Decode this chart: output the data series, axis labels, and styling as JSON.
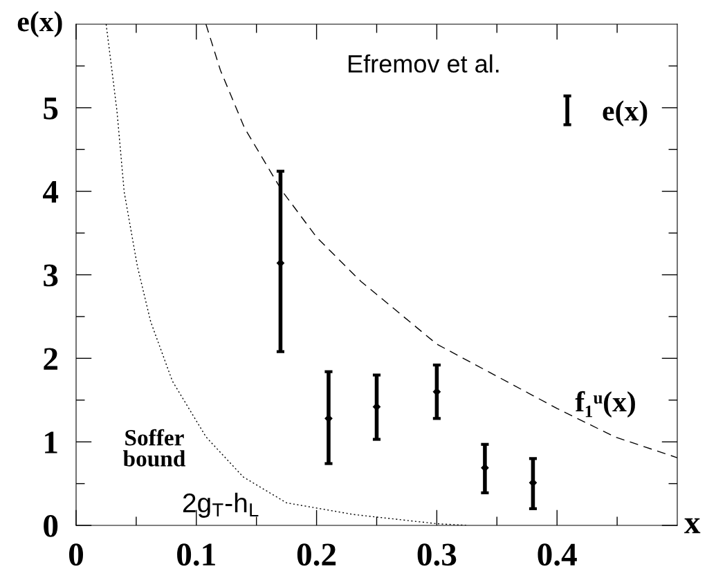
{
  "chart_data": {
    "type": "scatter",
    "xlabel": "x",
    "ylabel": "e(x)",
    "xlim": [
      0,
      0.5
    ],
    "ylim": [
      0,
      6
    ],
    "xticks": [
      0,
      {
        "value": 0.05,
        "label": null
      },
      0.1,
      {
        "value": 0.15,
        "label": null
      },
      0.2,
      {
        "value": 0.25,
        "label": null
      },
      0.3,
      {
        "value": 0.35,
        "label": null
      },
      0.4,
      {
        "value": 0.45,
        "label": null
      }
    ],
    "yticks": [
      0,
      {
        "value": 0.5,
        "label": null
      },
      1,
      {
        "value": 1.5,
        "label": null
      },
      2,
      {
        "value": 2.5,
        "label": null
      },
      3,
      {
        "value": 3.5,
        "label": null
      },
      4,
      {
        "value": 4.5,
        "label": null
      },
      5,
      {
        "value": 5.5,
        "label": null
      }
    ],
    "grid": false,
    "legend": "top right",
    "series": [
      {
        "name": "e(x)",
        "marker": "diamond",
        "color": "#000000",
        "x": [
          0.17,
          0.21,
          0.25,
          0.3,
          0.34,
          0.38
        ],
        "values": [
          3.14,
          1.28,
          1.42,
          1.6,
          0.69,
          0.51
        ],
        "errors": [
          [
            2.08,
            4.24
          ],
          [
            0.74,
            1.84
          ],
          [
            1.03,
            1.8
          ],
          [
            1.28,
            1.92
          ],
          [
            0.39,
            0.97
          ],
          [
            0.2,
            0.8
          ]
        ]
      },
      {
        "type": "line",
        "color": "#000000",
        "line_style": "dashed",
        "x": [
          0.108,
          0.12,
          0.14,
          0.171,
          0.2,
          0.232,
          0.237,
          0.3,
          0.4,
          0.448,
          0.5
        ],
        "values": [
          6.0,
          5.45,
          4.76,
          4.01,
          3.45,
          2.99,
          2.92,
          2.17,
          1.4,
          1.06,
          0.81
        ]
      },
      {
        "type": "line",
        "color": "#000000",
        "line_style": "dotted",
        "x": [
          0.025,
          0.034,
          0.04,
          0.051,
          0.062,
          0.08,
          0.108,
          0.139,
          0.175,
          0.231,
          0.3,
          0.326
        ],
        "values": [
          6.0,
          4.96,
          3.99,
          3.1,
          2.44,
          1.73,
          1.06,
          0.58,
          0.27,
          0.13,
          0.02,
          0
        ]
      }
    ],
    "annotations": [
      "Efremov et al.",
      "Soffer bound",
      {
        "text": "f₁ᵘ(x)",
        "x": 0.448,
        "y": 1.06
      },
      {
        "text": "2g$_{T}$-h$_{L}$",
        "x": 0.175,
        "y": 0.27
      }
    ]
  }
}
